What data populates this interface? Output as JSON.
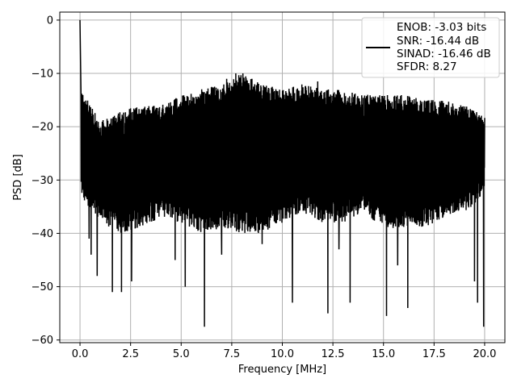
{
  "chart_data": {
    "type": "line",
    "title": "",
    "xlabel": "Frequency [MHz]",
    "ylabel": "PSD [dB]",
    "xlim": [
      -1.0,
      21.0
    ],
    "ylim": [
      -60.5,
      1.5
    ],
    "xticks": [
      0.0,
      2.5,
      5.0,
      7.5,
      10.0,
      12.5,
      15.0,
      17.5,
      20.0
    ],
    "xtick_labels": [
      "0.0",
      "2.5",
      "5.0",
      "7.5",
      "10.0",
      "12.5",
      "15.0",
      "17.5",
      "20.0"
    ],
    "yticks": [
      0,
      -10,
      -20,
      -30,
      -40,
      -50,
      -60
    ],
    "ytick_labels": [
      "0",
      "−10",
      "−20",
      "−30",
      "−40",
      "−50",
      "−60"
    ],
    "grid": true,
    "legend_position": "top-right",
    "legend": [
      "ENOB: -3.03 bits",
      "SNR: -16.44 dB",
      "SINAD: -16.46 dB",
      "SFDR: 8.27"
    ],
    "line_color": "#000000",
    "series": [
      {
        "peak": {
          "x": 0.0,
          "y": 0.0
        },
        "band_top_anchors": {
          "x": [
            0.05,
            1.0,
            2.0,
            3.0,
            4.0,
            5.0,
            6.0,
            7.0,
            8.0,
            9.0,
            10.0,
            11.0,
            12.0,
            13.0,
            14.0,
            15.0,
            16.0,
            17.0,
            18.0,
            19.0,
            20.0
          ],
          "y": [
            -13,
            -19,
            -17,
            -16,
            -16,
            -14,
            -13,
            -12,
            -10,
            -12,
            -13,
            -12,
            -13,
            -13,
            -14,
            -14,
            -14,
            -15,
            -15,
            -16,
            -18
          ]
        },
        "band_bottom_anchors": {
          "x": [
            0.05,
            1.0,
            2.0,
            3.0,
            4.0,
            5.0,
            6.0,
            7.0,
            8.0,
            9.0,
            10.0,
            11.0,
            12.0,
            13.0,
            14.0,
            15.0,
            16.0,
            17.0,
            18.0,
            19.0,
            20.0
          ],
          "y": [
            -33,
            -38,
            -40,
            -39,
            -37,
            -38,
            -40,
            -39,
            -40,
            -40,
            -38,
            -36,
            -38,
            -38,
            -36,
            -39,
            -39,
            -39,
            -37,
            -36,
            -33
          ]
        },
        "dips": [
          {
            "x": 0.45,
            "y": -41
          },
          {
            "x": 0.55,
            "y": -44
          },
          {
            "x": 0.85,
            "y": -48
          },
          {
            "x": 1.6,
            "y": -51
          },
          {
            "x": 2.05,
            "y": -51
          },
          {
            "x": 2.55,
            "y": -49
          },
          {
            "x": 4.7,
            "y": -45
          },
          {
            "x": 5.2,
            "y": -50
          },
          {
            "x": 6.15,
            "y": -57.5
          },
          {
            "x": 7.0,
            "y": -44
          },
          {
            "x": 9.0,
            "y": -42
          },
          {
            "x": 10.5,
            "y": -53
          },
          {
            "x": 12.25,
            "y": -55
          },
          {
            "x": 12.8,
            "y": -43
          },
          {
            "x": 13.35,
            "y": -53
          },
          {
            "x": 15.15,
            "y": -55.5
          },
          {
            "x": 15.7,
            "y": -46
          },
          {
            "x": 16.2,
            "y": -54
          },
          {
            "x": 19.5,
            "y": -49
          },
          {
            "x": 19.65,
            "y": -53
          },
          {
            "x": 19.95,
            "y": -57.5
          }
        ],
        "spikes": [
          {
            "x": 7.25,
            "y": -11
          },
          {
            "x": 7.7,
            "y": -10
          },
          {
            "x": 8.05,
            "y": -10
          },
          {
            "x": 8.5,
            "y": -11
          },
          {
            "x": 10.55,
            "y": -12.5
          },
          {
            "x": 11.75,
            "y": -11.5
          }
        ]
      }
    ]
  }
}
